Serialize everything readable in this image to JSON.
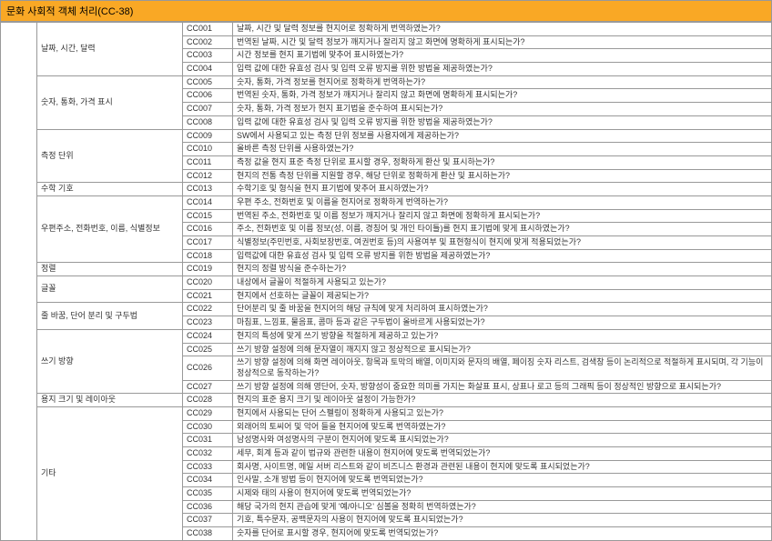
{
  "header": "문화 사회적 객체 처리(CC-38)",
  "categories": [
    {
      "name": "날짜, 시간, 달력",
      "items": [
        {
          "code": "CC001",
          "desc": "날짜, 시간 및 달력 정보를 현지어로 정확하게 번역하였는가?"
        },
        {
          "code": "CC002",
          "desc": "번역된 날짜, 시간 및 달력 정보가 깨지거나 잘리지 않고 화면에 명확하게 표시되는가?"
        },
        {
          "code": "CC003",
          "desc": "시간 정보를 현지 표기법에 맞추어 표시하였는가?"
        },
        {
          "code": "CC004",
          "desc": "입력 값에 대한 유효성 검사 및 입력 오류 방지를 위한 방법을 제공하였는가?"
        }
      ]
    },
    {
      "name": "숫자, 통화, 가격 표시",
      "items": [
        {
          "code": "CC005",
          "desc": "숫자, 통화, 가격 정보를 현지어로 정확하게 번역하는가?"
        },
        {
          "code": "CC006",
          "desc": "번역된 숫자, 통화, 가격 정보가 깨지거나 잘리지 않고 화면에 명확하게 표시되는가?"
        },
        {
          "code": "CC007",
          "desc": "숫자, 통화, 가격 정보가 현지 표기법을 준수하여 표시되는가?"
        },
        {
          "code": "CC008",
          "desc": "입력 값에 대한 유효성 검사 및 입력 오류 방지를 위한 방법을 제공하였는가?"
        }
      ]
    },
    {
      "name": "측정 단위",
      "items": [
        {
          "code": "CC009",
          "desc": "SW에서 사용되고 있는 측정 단위 정보를 사용자에게 제공하는가?"
        },
        {
          "code": "CC010",
          "desc": "올바른 측정 단위를 사용하였는가?"
        },
        {
          "code": "CC011",
          "desc": "측정 값을 현지 표준 측정 단위로 표시할 경우, 정확하게 환산 및 표시하는가?"
        },
        {
          "code": "CC012",
          "desc": "현지의 전통 측정 단위를 지원할 경우, 해당 단위로 정확하게 환산 및 표시하는가?"
        }
      ]
    },
    {
      "name": "수학 기호",
      "items": [
        {
          "code": "CC013",
          "desc": "수학기호 및 형식을 현지 표기법에 맞추어 표시하였는가?"
        }
      ]
    },
    {
      "name": "우편주소, 전화번호, 이름, 식별정보",
      "items": [
        {
          "code": "CC014",
          "desc": "우편 주소, 전화번호 및 이름을 현지어로 정확하게 번역하는가?"
        },
        {
          "code": "CC015",
          "desc": "번역된 주소, 전화번호 및 이름 정보가 깨지거나 잘리지 않고 화면에 정확하게 표시되는가?"
        },
        {
          "code": "CC016",
          "desc": "주소, 전화번호 및 이름 정보(성, 이름, 경칭어 및 개인 타이틀)를 현지 표기법에 맞게 표시하였는가?"
        },
        {
          "code": "CC017",
          "desc": "식별정보(주민번호, 사회보장번호, 여권번호 등)의 사용여부 및 표현형식이 현지에 맞게 적용되었는가?"
        },
        {
          "code": "CC018",
          "desc": "입력값에 대한 유효성 검사 및 입력 오류 방지를 위한 방법을 제공하였는가?"
        }
      ]
    },
    {
      "name": "정렬",
      "items": [
        {
          "code": "CC019",
          "desc": "현지의 정렬 방식을 준수하는가?"
        }
      ]
    },
    {
      "name": "글꼴",
      "items": [
        {
          "code": "CC020",
          "desc": "내상에서 글꼴이 적절하게 사용되고 있는가?"
        },
        {
          "code": "CC021",
          "desc": "현지에서 선호하는 글꼴이 제공되는가?"
        }
      ]
    },
    {
      "name": "줄 바꿈, 단어 분리 및 구두법",
      "items": [
        {
          "code": "CC022",
          "desc": "단어분리 및 줄 바꿈을 현지어의 해당 규칙에 맞게 처리하여 표시하였는가?"
        },
        {
          "code": "CC023",
          "desc": "마침표, 느낌표, 물음표, 콤마 등과 같은 구두법이 올바르게 사용되었는가?"
        }
      ]
    },
    {
      "name": "쓰기 방향",
      "items": [
        {
          "code": "CC024",
          "desc": "현지의 특성에 맞게 쓰기 방향을 적절하게 제공하고 있는가?"
        },
        {
          "code": "CC025",
          "desc": "쓰기 방향 설정에 의해 문자열이 깨지지 않고 정상적으로 표시되는가?"
        },
        {
          "code": "CC026",
          "desc": "쓰기 방향 설정에 의해 화면 레이아웃, 항목과 토막의 배열, 이미지와 문자의 배열, 페이징 숫자 리스트, 검색창 등이 논리적으로 적절하게 표시되며, 각 기능이 정상적으로 동작하는가?"
        },
        {
          "code": "CC027",
          "desc": "쓰기 방향 설정에 의해 영단어, 숫자, 방향성이 중요한 의미를 가지는 화살표 표시, 상표나 로고 등의 그래픽 등이 정상적인 방향으로 표시되는가?"
        }
      ]
    },
    {
      "name": "용지 크기 및 레이아웃",
      "items": [
        {
          "code": "CC028",
          "desc": "현지의 표준 용지 크기 및 레이아웃 설정이 가능한가?"
        }
      ]
    },
    {
      "name": "기타",
      "items": [
        {
          "code": "CC029",
          "desc": "현지에서 사용되는 단어 스펠링이 정확하게 사용되고 있는가?"
        },
        {
          "code": "CC030",
          "desc": "외래어의 토씨어 및 악어 들을 현지어에 맞도록 번역하였는가?"
        },
        {
          "code": "CC031",
          "desc": "남성명사와 여성명사의 구분이 현지어에 맞도록 표시되었는가?"
        },
        {
          "code": "CC032",
          "desc": "세무, 회계 등과 같이 법규와 관련한 내용이 현지어에 맞도록 번역되었는가?"
        },
        {
          "code": "CC033",
          "desc": "회사명, 사이트명, 메일 서버 리스트와 같이 비즈니스 환경과 관련된 내용이 현지에 맞도록 표시되었는가?"
        },
        {
          "code": "CC034",
          "desc": "인사말, 소개 방법 등이 현지어에 맞도록 번역되었는가?"
        },
        {
          "code": "CC035",
          "desc": "시제와 태의 사용이 현지어에 맞도록 번역되었는가?"
        },
        {
          "code": "CC036",
          "desc": "해당 국가의 현지 관습에 맞게 '예/아니오' 심볼을 정확히 번역하였는가?"
        },
        {
          "code": "CC037",
          "desc": "기호, 특수문자, 공백문자의 사용이 현지어에 맞도록 표시되었는가?"
        },
        {
          "code": "CC038",
          "desc": "숫자를 단어로 표시할 경우, 현지어에 맞도록 번역되었는가?"
        }
      ]
    }
  ]
}
